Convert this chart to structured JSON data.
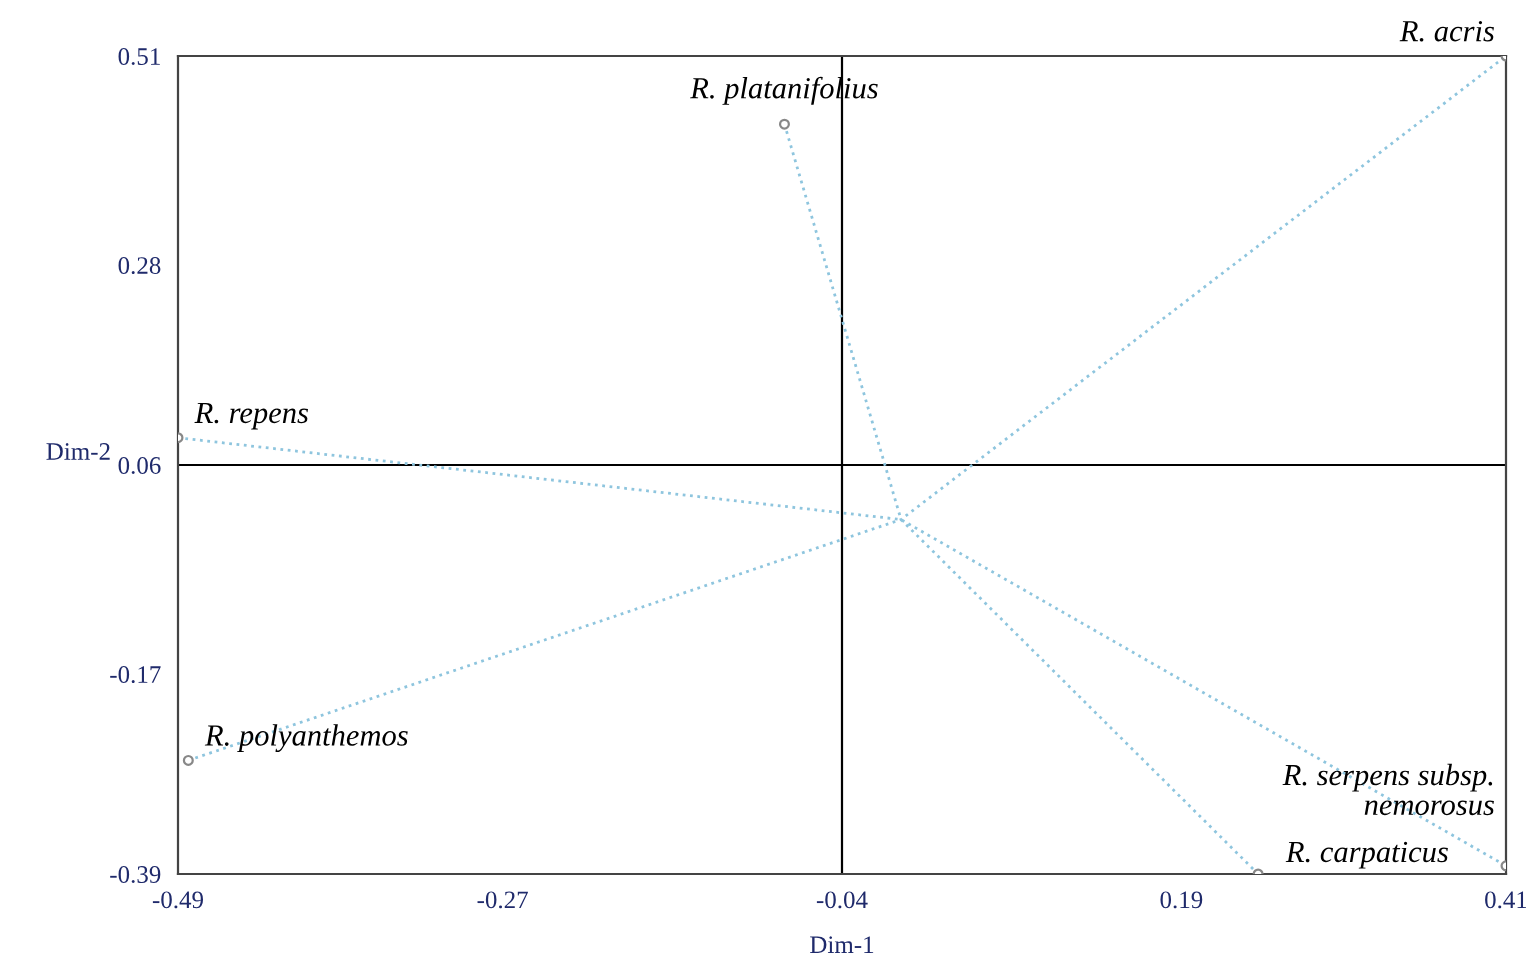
{
  "chart_data": {
    "type": "scatter",
    "xlabel": "Dim-1",
    "ylabel": "Dim-2",
    "xlim": [
      -0.49,
      0.41
    ],
    "ylim": [
      -0.39,
      0.51
    ],
    "xticks": [
      -0.49,
      -0.27,
      -0.04,
      0.19,
      0.41
    ],
    "yticks": [
      -0.39,
      -0.17,
      0.06,
      0.28,
      0.51
    ],
    "grid": false,
    "legend": false,
    "ref_lines": [
      {
        "axis": "x",
        "value": -0.04,
        "color": "#000000"
      },
      {
        "axis": "y",
        "value": 0.06,
        "color": "#000000"
      }
    ],
    "series": [
      {
        "type": "line",
        "color": "#8ec5de",
        "line_style": "dotted",
        "marker": "none",
        "x": [
          -0.49,
          0.0,
          0.41
        ],
        "values": [
          0.09,
          0.0,
          -0.381
        ]
      },
      {
        "type": "line",
        "color": "#8ec5de",
        "line_style": "dotted",
        "marker": "none",
        "x": [
          -0.483,
          0.0,
          0.41
        ],
        "values": [
          -0.265,
          0.0,
          0.51
        ]
      },
      {
        "type": "line",
        "color": "#8ec5de",
        "line_style": "dotted",
        "marker": "none",
        "x": [
          -0.079,
          0.0,
          0.242
        ],
        "values": [
          0.435,
          0.0,
          -0.39
        ]
      },
      {
        "color": "#888888",
        "marker": "circle",
        "x": [
          0.41,
          -0.079,
          -0.49,
          -0.483,
          0.242,
          0.41
        ],
        "values": [
          0.51,
          0.435,
          0.09,
          -0.265,
          -0.39,
          -0.381
        ]
      }
    ],
    "annotations": [
      {
        "text": "R. acris",
        "x": 0.41,
        "y": 0.51
      },
      {
        "text": "R. platanifolius",
        "x": -0.079,
        "y": 0.435
      },
      {
        "text": "R. repens",
        "x": -0.49,
        "y": 0.09
      },
      {
        "text": "R. polyanthemos",
        "x": -0.483,
        "y": -0.265
      },
      {
        "text": "R. carpaticus",
        "x": 0.242,
        "y": -0.39
      },
      {
        "text": "R. serpens subsp.\nnemorosus",
        "x": 0.41,
        "y": -0.381
      }
    ]
  }
}
